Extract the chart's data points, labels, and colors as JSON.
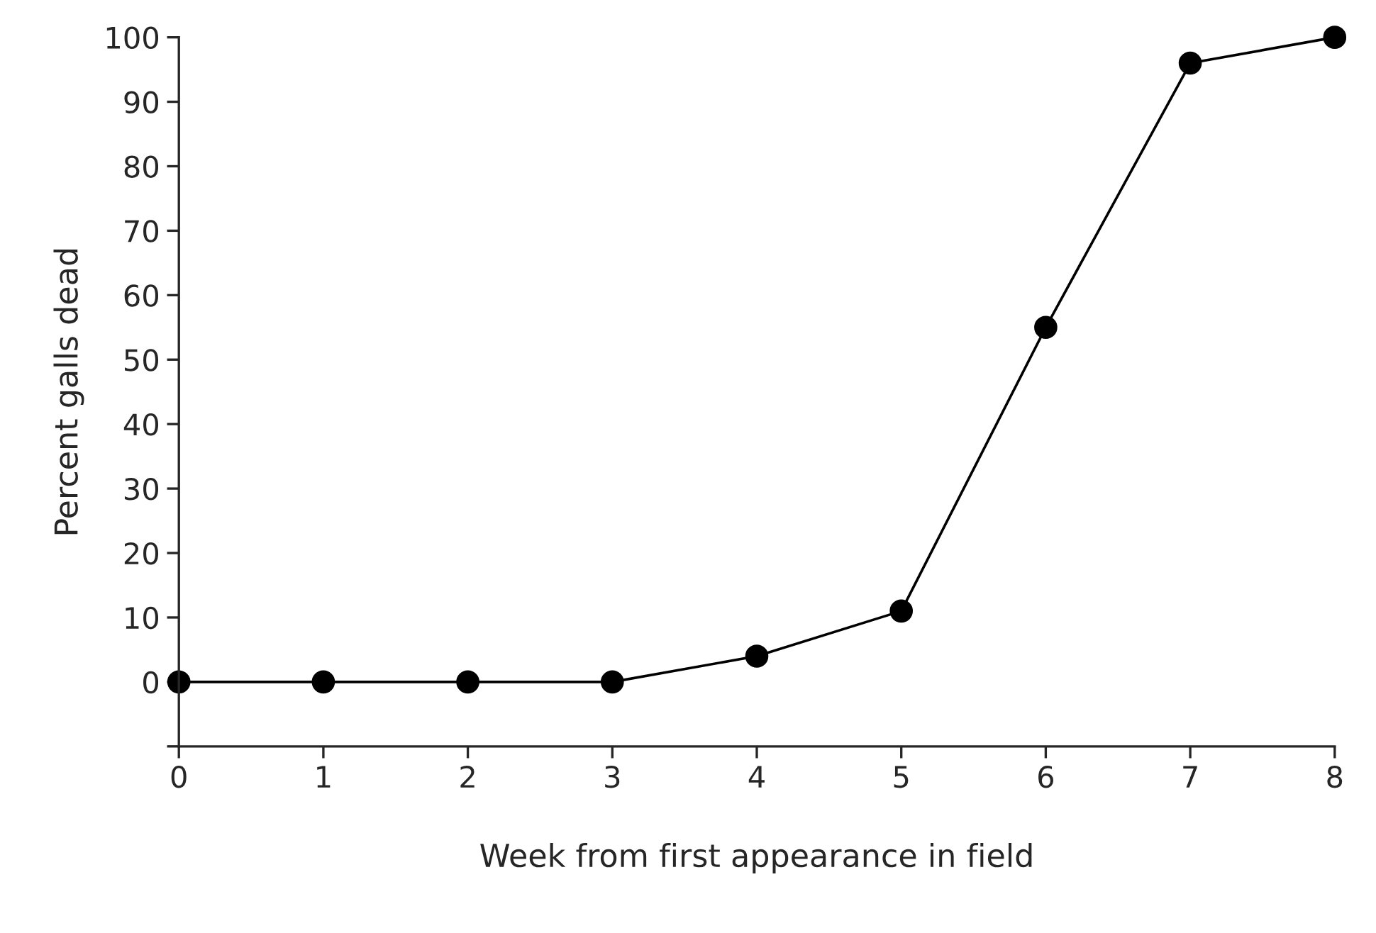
{
  "chart_data": {
    "type": "line",
    "xlabel": "Week from first appearance in field",
    "ylabel": "Percent galls dead",
    "x": [
      0,
      1,
      2,
      3,
      4,
      5,
      6,
      7,
      8
    ],
    "series": [
      {
        "color": "#000000",
        "values": [
          0,
          0,
          0,
          0,
          4,
          11,
          55,
          96,
          100
        ]
      }
    ],
    "xlim": [
      0,
      8
    ],
    "xticks": [
      0,
      1,
      2,
      3,
      4,
      5,
      6,
      7,
      8
    ],
    "ylim": [
      -10,
      100
    ],
    "yticks": [
      {
        "value": -10,
        "label": null
      },
      0,
      10,
      20,
      30,
      40,
      50,
      60,
      70,
      80,
      90,
      100
    ],
    "marker": "circle",
    "line_style": "solid",
    "grid": false
  }
}
